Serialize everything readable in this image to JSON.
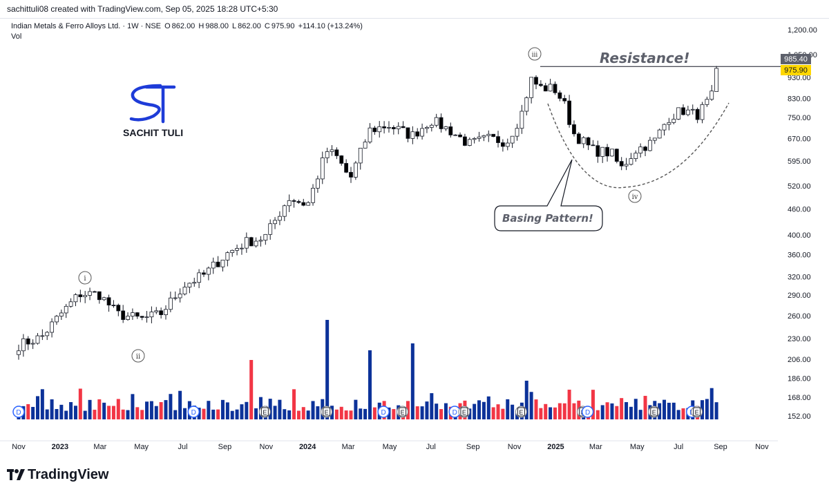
{
  "header": {
    "creator_line": "sachittuli08 created with TradingView.com, Sep 05, 2025 18:28 UTC+5:30"
  },
  "legend": {
    "symbol": "Indian Metals & Ferro Alloys Ltd. · 1W · NSE",
    "open_label": "O",
    "open": "862.00",
    "high_label": "H",
    "high": "988.00",
    "low_label": "L",
    "low": "862.00",
    "close_label": "C",
    "close": "975.90",
    "change": "+114.10 (+13.24%)",
    "volume_label": "Vol"
  },
  "brand": {
    "watermark_name": "SACHIT TULI",
    "footer_name": "TradingView"
  },
  "colors": {
    "up_candle_fill": "#ffffff",
    "down_candle_fill": "#000000",
    "volume_up": "#0c3299",
    "volume_down": "#f23645",
    "watermark": "#1e3cd8",
    "resistance_badge": "#5d606b",
    "price_badge": "#ffd700"
  },
  "chart_data": {
    "type": "candlestick",
    "interval": "1W",
    "price_scale": "log",
    "y_ticks": [
      "1,200.00",
      "1,050.00",
      "930.00",
      "830.00",
      "750.00",
      "670.00",
      "595.00",
      "520.00",
      "460.00",
      "400.00",
      "360.00",
      "320.00",
      "290.00",
      "260.00",
      "230.00",
      "206.00",
      "186.00",
      "168.00",
      "152.00"
    ],
    "x_ticks": [
      "Nov",
      "2023",
      "Mar",
      "May",
      "Jul",
      "Sep",
      "Nov",
      "2024",
      "Mar",
      "May",
      "Jul",
      "Sep",
      "Nov",
      "2025",
      "Mar",
      "May",
      "Jul",
      "Sep",
      "Nov"
    ],
    "bold_x_ticks": [
      "2023",
      "2024",
      "2025"
    ],
    "last_price_badge": "975.90",
    "resistance_badge": "985.40",
    "resistance_level": 985.4,
    "annotations": {
      "resistance": "Resistance!",
      "basing": "Basing Pattern!",
      "wave_1": "i",
      "wave_2": "ii",
      "wave_3": "iii",
      "wave_4": "iv"
    },
    "event_markers": {
      "dividend": "D",
      "earnings": "E"
    },
    "anchors": [
      [
        "2022-11-01",
        222
      ],
      [
        "2022-12-05",
        232
      ],
      [
        "2023-01-02",
        262
      ],
      [
        "2023-01-30",
        292
      ],
      [
        "2023-02-27",
        292
      ],
      [
        "2023-03-27",
        262
      ],
      [
        "2023-05-01",
        255
      ],
      [
        "2023-05-29",
        262
      ],
      [
        "2023-07-03",
        306
      ],
      [
        "2023-07-31",
        322
      ],
      [
        "2023-09-04",
        362
      ],
      [
        "2023-10-02",
        385
      ],
      [
        "2023-10-30",
        395
      ],
      [
        "2023-12-04",
        488
      ],
      [
        "2024-01-01",
        470
      ],
      [
        "2024-01-29",
        628
      ],
      [
        "2024-02-12",
        610
      ],
      [
        "2024-03-04",
        540
      ],
      [
        "2024-04-01",
        700
      ],
      [
        "2024-04-29",
        720
      ],
      [
        "2024-06-03",
        680
      ],
      [
        "2024-07-01",
        740
      ],
      [
        "2024-07-29",
        700
      ],
      [
        "2024-08-26",
        650
      ],
      [
        "2024-09-23",
        670
      ],
      [
        "2024-10-21",
        660
      ],
      [
        "2024-11-11",
        760
      ],
      [
        "2024-11-25",
        920
      ],
      [
        "2024-12-09",
        880
      ],
      [
        "2024-12-30",
        875
      ],
      [
        "2025-01-13",
        810
      ],
      [
        "2025-01-27",
        690
      ],
      [
        "2025-02-24",
        630
      ],
      [
        "2025-03-24",
        620
      ],
      [
        "2025-04-07",
        570
      ],
      [
        "2025-04-28",
        630
      ],
      [
        "2025-05-26",
        660
      ],
      [
        "2025-06-16",
        750
      ],
      [
        "2025-07-07",
        780
      ],
      [
        "2025-07-28",
        760
      ],
      [
        "2025-08-18",
        830
      ],
      [
        "2025-09-01",
        975.9
      ]
    ],
    "final_candle": {
      "date": "2025-09-01",
      "open": 862.0,
      "high": 988.0,
      "low": 862.0,
      "close": 975.9
    },
    "volume_spikes": [
      [
        "2023-10-09",
        4.3
      ],
      [
        "2024-01-29",
        7.2
      ],
      [
        "2024-04-01",
        5.0
      ],
      [
        "2024-06-03",
        5.5
      ],
      [
        "2024-11-18",
        2.8
      ]
    ]
  }
}
